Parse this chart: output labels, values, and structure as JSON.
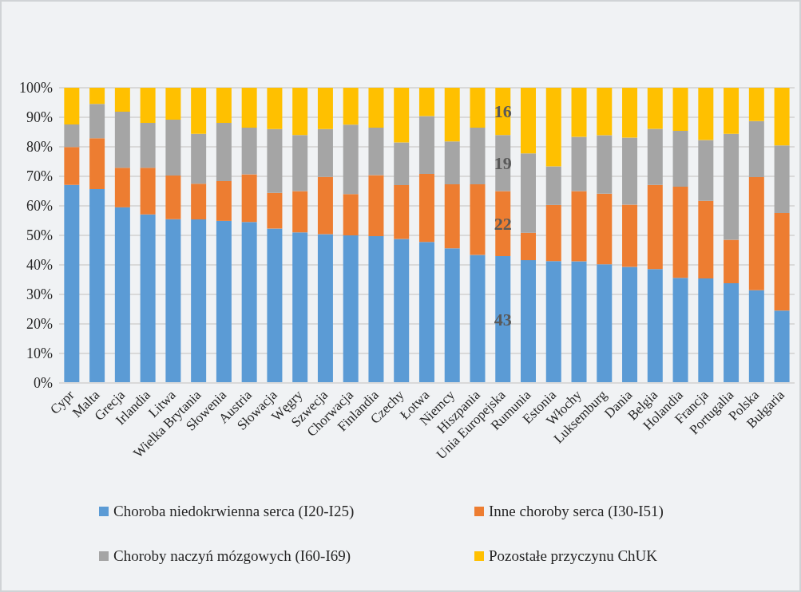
{
  "chart_data": {
    "type": "bar",
    "stacked": true,
    "grid": "y",
    "legend": "bottom",
    "categories": [
      "Cypr",
      "Malta",
      "Grecja",
      "Irlandia",
      "Litwa",
      "Wielka Brytania",
      "Słowenia",
      "Austria",
      "Słowacja",
      "Węgry",
      "Szwecja",
      "Chorwacja",
      "Finlandia",
      "Czechy",
      "Łotwa",
      "Niemcy",
      "Hiszpania",
      "Unia Europejska",
      "Rumunia",
      "Estonia",
      "Włochy",
      "Luksemburg",
      "Dania",
      "Belgia",
      "Holandia",
      "Francja",
      "Portugalia",
      "Polska",
      "Bułgaria"
    ],
    "ylim": [
      0,
      100
    ],
    "yticks": [
      {
        "value": 0,
        "label": "0%"
      },
      {
        "value": 10,
        "label": "10%"
      },
      {
        "value": 20,
        "label": "20%"
      },
      {
        "value": 30,
        "label": "30%"
      },
      {
        "value": 40,
        "label": "40%"
      },
      {
        "value": 50,
        "label": "50%"
      },
      {
        "value": 60,
        "label": "60%"
      },
      {
        "value": 70,
        "label": "70%"
      },
      {
        "value": 80,
        "label": "80%"
      },
      {
        "value": 90,
        "label": "90%"
      },
      {
        "value": 100,
        "label": "100%"
      }
    ],
    "series": [
      {
        "name": "Choroba niedokrwienna serca (I20-I25)",
        "color": "#5b9bd5",
        "values": [
          67.1,
          65.7,
          59.5,
          57.1,
          55.5,
          55.4,
          54.9,
          54.5,
          52.3,
          51,
          50.4,
          50,
          49.7,
          48.8,
          47.8,
          45.6,
          43.4,
          43,
          41.6,
          41.3,
          41.2,
          40.2,
          39.3,
          38.6,
          35.6,
          35.4,
          33.8,
          31.4,
          24.5
        ],
        "value_labels": [
          null,
          null,
          null,
          null,
          null,
          null,
          null,
          null,
          null,
          null,
          null,
          null,
          null,
          null,
          null,
          null,
          null,
          "43",
          null,
          null,
          null,
          null,
          null,
          null,
          null,
          null,
          null,
          null,
          null
        ]
      },
      {
        "name": "Inne choroby serca (I30-I51)",
        "color": "#ed7d31",
        "values": [
          12.8,
          17.2,
          13.4,
          15.8,
          14.8,
          12.1,
          13.5,
          16.2,
          12.1,
          14,
          19.4,
          14,
          20.7,
          18.2,
          23,
          21.7,
          23.9,
          22,
          9.3,
          19,
          23.8,
          23.9,
          21.1,
          28.5,
          30.9,
          26.3,
          14.7,
          38.3,
          33.1
        ],
        "value_labels": [
          null,
          null,
          null,
          null,
          null,
          null,
          null,
          null,
          null,
          null,
          null,
          null,
          null,
          null,
          null,
          null,
          null,
          "22",
          null,
          null,
          null,
          null,
          null,
          null,
          null,
          null,
          null,
          null,
          null
        ]
      },
      {
        "name": "Choroby naczyń mózgowych (I60-I69)",
        "color": "#a5a5a5",
        "values": [
          7.7,
          11.6,
          19,
          15.2,
          18.9,
          16.9,
          19.7,
          15.8,
          21.6,
          19,
          16.2,
          23.5,
          16.1,
          14.5,
          19.6,
          14.5,
          19.2,
          19,
          26.9,
          13.1,
          18.4,
          19.8,
          22.7,
          19,
          18.9,
          20.6,
          35.9,
          19,
          22.9
        ],
        "value_labels": [
          null,
          null,
          null,
          null,
          null,
          null,
          null,
          null,
          null,
          null,
          null,
          null,
          null,
          null,
          null,
          null,
          null,
          "19",
          null,
          null,
          null,
          null,
          null,
          null,
          null,
          null,
          null,
          null,
          null
        ]
      },
      {
        "name": "Pozostałe przyczynu ChUK",
        "color": "#ffc000",
        "values": [
          12.4,
          5.5,
          8.1,
          11.9,
          10.8,
          15.6,
          11.9,
          13.5,
          14,
          16,
          14,
          12.5,
          13.5,
          18.5,
          9.6,
          18.2,
          13.5,
          16,
          22.2,
          26.6,
          16.6,
          16.1,
          16.9,
          13.9,
          14.6,
          17.7,
          15.6,
          11.3,
          19.5
        ],
        "value_labels": [
          null,
          null,
          null,
          null,
          null,
          null,
          null,
          null,
          null,
          null,
          null,
          null,
          null,
          null,
          null,
          null,
          null,
          "16",
          null,
          null,
          null,
          null,
          null,
          null,
          null,
          null,
          null,
          null,
          null
        ]
      }
    ]
  }
}
